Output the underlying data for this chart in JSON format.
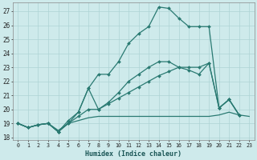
{
  "xlabel": "Humidex (Indice chaleur)",
  "background_color": "#ceeaeb",
  "grid_color": "#aed4d5",
  "line_color": "#2a7a72",
  "xlim": [
    -0.5,
    23.5
  ],
  "ylim": [
    17.8,
    27.6
  ],
  "yticks": [
    18,
    19,
    20,
    21,
    22,
    23,
    24,
    25,
    26,
    27
  ],
  "xticks": [
    0,
    1,
    2,
    3,
    4,
    5,
    6,
    7,
    8,
    9,
    10,
    11,
    12,
    13,
    14,
    15,
    16,
    17,
    18,
    19,
    20,
    21,
    22,
    23
  ],
  "series": [
    {
      "x": [
        0,
        1,
        2,
        3,
        4,
        5,
        6,
        7,
        8,
        9,
        10,
        11,
        12,
        13,
        14,
        15,
        16,
        17,
        18,
        19,
        20,
        21,
        22,
        23
      ],
      "y": [
        19.0,
        18.7,
        18.9,
        19.0,
        18.5,
        19.0,
        19.2,
        19.4,
        19.5,
        19.5,
        19.5,
        19.5,
        19.5,
        19.5,
        19.5,
        19.5,
        19.5,
        19.5,
        19.5,
        19.5,
        19.6,
        19.8,
        19.6,
        19.5
      ],
      "markers": false
    },
    {
      "x": [
        0,
        1,
        2,
        3,
        4,
        5,
        6,
        7,
        8,
        9,
        10,
        11,
        12,
        13,
        14,
        15,
        16,
        17,
        18,
        19,
        20,
        21,
        22
      ],
      "y": [
        19.0,
        18.7,
        18.9,
        19.0,
        18.4,
        19.2,
        19.8,
        21.5,
        22.5,
        22.5,
        23.4,
        24.7,
        25.4,
        25.9,
        27.3,
        27.2,
        26.5,
        25.9,
        25.9,
        25.9,
        20.1,
        20.7,
        19.6
      ],
      "markers": true
    },
    {
      "x": [
        0,
        1,
        2,
        3,
        4,
        5,
        6,
        7,
        8,
        9,
        10,
        11,
        12,
        13,
        14,
        15,
        16,
        17,
        18,
        19,
        20,
        21,
        22
      ],
      "y": [
        19.0,
        18.7,
        18.9,
        19.0,
        18.4,
        19.0,
        19.8,
        21.5,
        20.0,
        20.5,
        21.2,
        22.0,
        22.5,
        23.0,
        23.4,
        23.4,
        23.0,
        22.8,
        22.5,
        23.3,
        20.1,
        20.7,
        19.6
      ],
      "markers": true
    },
    {
      "x": [
        0,
        1,
        2,
        3,
        4,
        5,
        6,
        7,
        8,
        9,
        10,
        11,
        12,
        13,
        14,
        15,
        16,
        17,
        18,
        19,
        20,
        21,
        22
      ],
      "y": [
        19.0,
        18.7,
        18.9,
        19.0,
        18.4,
        19.0,
        19.5,
        20.0,
        20.0,
        20.4,
        20.8,
        21.2,
        21.6,
        22.0,
        22.4,
        22.7,
        23.0,
        23.0,
        23.0,
        23.3,
        20.1,
        20.7,
        19.6
      ],
      "markers": true
    }
  ]
}
